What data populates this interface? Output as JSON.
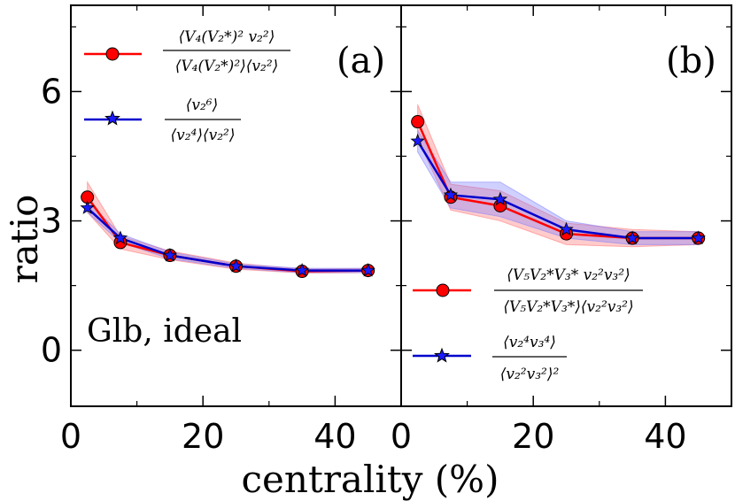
{
  "chart_data": [
    {
      "type": "line",
      "panel_label": "(a)",
      "annotation": "Glb, ideal",
      "xlabel": "centrality (%)",
      "ylabel": "ratio",
      "xlim": [
        0,
        50
      ],
      "ylim": [
        -1.3,
        8
      ],
      "x_ticks": [
        0,
        20,
        40
      ],
      "y_ticks": [
        0,
        3,
        6
      ],
      "x": [
        2.5,
        7.5,
        15,
        25,
        35,
        45
      ],
      "series": [
        {
          "name": "<V4 (V2*)^2 v2^2> / (<V4 (V2*)^2><v2^2>)",
          "legend_num": "⟨V₄(V₂*)² v₂²⟩",
          "legend_den": "⟨V₄(V₂*)²⟩⟨v₂²⟩",
          "color": "#ff0000",
          "marker": "circle",
          "values": [
            3.55,
            2.5,
            2.2,
            1.95,
            1.83,
            1.85
          ],
          "band_low": [
            3.2,
            2.35,
            2.1,
            1.88,
            1.79,
            1.8
          ],
          "band_high": [
            3.9,
            2.65,
            2.3,
            2.02,
            1.88,
            1.9
          ]
        },
        {
          "name": "<v2^6> / (<v2^4><v2^2>)",
          "legend_num": "⟨v₂⁶⟩",
          "legend_den": "⟨v₂⁴⟩⟨v₂²⟩",
          "color": "#0000cc",
          "marker": "star",
          "values": [
            3.3,
            2.6,
            2.2,
            1.95,
            1.85,
            1.85
          ],
          "band_low": [
            3.2,
            2.5,
            2.12,
            1.9,
            1.8,
            1.8
          ],
          "band_high": [
            3.45,
            2.7,
            2.28,
            2.0,
            1.9,
            1.9
          ]
        }
      ]
    },
    {
      "type": "line",
      "panel_label": "(b)",
      "xlabel": "centrality (%)",
      "ylabel": "ratio",
      "xlim": [
        0,
        50
      ],
      "ylim": [
        -1.3,
        8
      ],
      "x_ticks": [
        0,
        20,
        40
      ],
      "y_ticks": [
        0,
        3,
        6
      ],
      "x": [
        2.5,
        7.5,
        15,
        25,
        35,
        45
      ],
      "series": [
        {
          "name": "<V5 V2* V3* v2^2 v3^2> / (<V5 V2* V3*><v2^2 v3^2>)",
          "legend_num": "⟨V₅V₂*V₃* v₂²v₃²⟩",
          "legend_den": "⟨V₅V₂*V₃*⟩⟨v₂²v₃²⟩",
          "color": "#ff0000",
          "marker": "circle",
          "values": [
            5.3,
            3.55,
            3.35,
            2.7,
            2.6,
            2.6
          ],
          "band_low": [
            4.9,
            3.25,
            3.0,
            2.45,
            2.4,
            2.45
          ],
          "band_high": [
            5.7,
            3.85,
            3.7,
            2.95,
            2.8,
            2.75
          ]
        },
        {
          "name": "<v2^4 v3^4> / <v2^2 v3^2>^2",
          "legend_num": "⟨v₂⁴v₃⁴⟩",
          "legend_den": "⟨v₂²v₃²⟩²",
          "color": "#0000cc",
          "marker": "star",
          "values": [
            4.85,
            3.6,
            3.5,
            2.8,
            2.6,
            2.6
          ],
          "band_low": [
            4.6,
            3.3,
            3.1,
            2.6,
            2.45,
            2.45
          ],
          "band_high": [
            5.1,
            3.9,
            3.9,
            3.0,
            2.75,
            2.75
          ]
        }
      ]
    }
  ]
}
